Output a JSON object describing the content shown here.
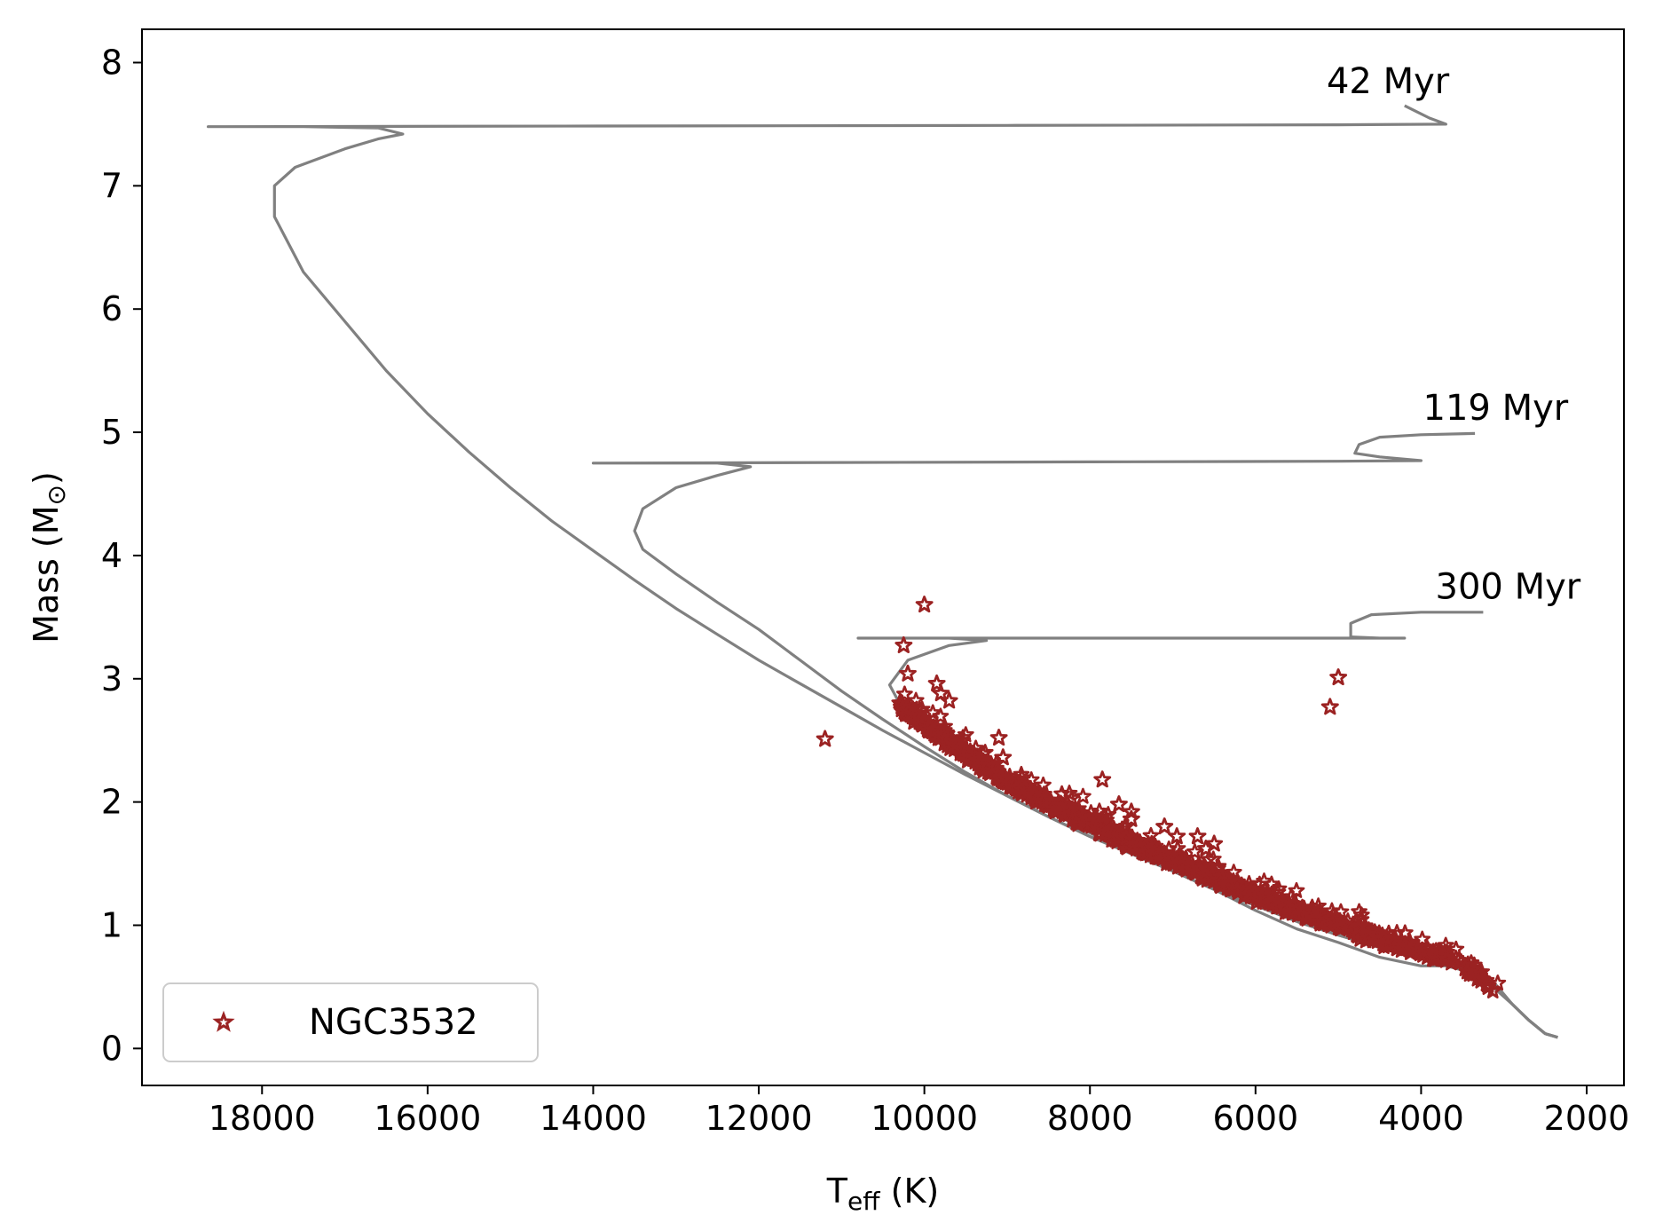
{
  "chart_data": {
    "type": "scatter",
    "title": "",
    "xlabel": "T",
    "xlabel_sub": "eff",
    "xlabel_unit": " (K)",
    "ylabel": "Mass (M",
    "ylabel_sub": "⊙",
    "ylabel_close": ")",
    "xlim": [
      19450,
      1550
    ],
    "ylim": [
      -0.3,
      8.27
    ],
    "xticks": [
      18000,
      16000,
      14000,
      12000,
      10000,
      8000,
      6000,
      4000,
      2000
    ],
    "yticks": [
      0,
      1,
      2,
      3,
      4,
      5,
      6,
      7,
      8
    ],
    "legend": {
      "position": "lower-left",
      "label": "NGC3532"
    },
    "colors": {
      "isochrone": "#808080",
      "stars": "#9b2222"
    },
    "isochrones": [
      {
        "name": "42 Myr",
        "label_at": [
          4400,
          7.75
        ],
        "points": [
          [
            2350,
            0.09
          ],
          [
            2500,
            0.12
          ],
          [
            2700,
            0.23
          ],
          [
            2900,
            0.36
          ],
          [
            3100,
            0.48
          ],
          [
            3300,
            0.58
          ],
          [
            3600,
            0.68
          ],
          [
            4000,
            0.74
          ],
          [
            4500,
            0.82
          ],
          [
            5000,
            0.92
          ],
          [
            5500,
            1.03
          ],
          [
            6000,
            1.16
          ],
          [
            6500,
            1.29
          ],
          [
            7000,
            1.44
          ],
          [
            7500,
            1.58
          ],
          [
            8000,
            1.72
          ],
          [
            8500,
            1.88
          ],
          [
            9000,
            2.05
          ],
          [
            9500,
            2.22
          ],
          [
            10000,
            2.4
          ],
          [
            10500,
            2.58
          ],
          [
            11000,
            2.77
          ],
          [
            11500,
            2.96
          ],
          [
            12000,
            3.15
          ],
          [
            12500,
            3.36
          ],
          [
            13000,
            3.57
          ],
          [
            13500,
            3.8
          ],
          [
            14000,
            4.04
          ],
          [
            14500,
            4.28
          ],
          [
            15000,
            4.55
          ],
          [
            15500,
            4.84
          ],
          [
            16000,
            5.15
          ],
          [
            16500,
            5.5
          ],
          [
            17000,
            5.9
          ],
          [
            17500,
            6.3
          ],
          [
            17850,
            6.75
          ],
          [
            17850,
            7.0
          ],
          [
            17600,
            7.15
          ],
          [
            17000,
            7.3
          ],
          [
            16600,
            7.38
          ],
          [
            16300,
            7.42
          ],
          [
            16600,
            7.47
          ],
          [
            17500,
            7.48
          ],
          [
            18650,
            7.48
          ],
          [
            14000,
            7.485
          ],
          [
            9000,
            7.49
          ],
          [
            5000,
            7.495
          ],
          [
            3700,
            7.5
          ],
          [
            3900,
            7.55
          ],
          [
            4200,
            7.65
          ]
        ]
      },
      {
        "name": "119 Myr",
        "label_at": [
          3100,
          5.1
        ],
        "points": [
          [
            2350,
            0.09
          ],
          [
            2500,
            0.12
          ],
          [
            2700,
            0.23
          ],
          [
            2900,
            0.36
          ],
          [
            3100,
            0.5
          ],
          [
            3300,
            0.62
          ],
          [
            3600,
            0.7
          ],
          [
            4000,
            0.73
          ],
          [
            4500,
            0.82
          ],
          [
            5000,
            0.92
          ],
          [
            5500,
            1.03
          ],
          [
            6000,
            1.16
          ],
          [
            6500,
            1.29
          ],
          [
            7000,
            1.44
          ],
          [
            7500,
            1.58
          ],
          [
            8000,
            1.72
          ],
          [
            8500,
            1.88
          ],
          [
            9000,
            2.05
          ],
          [
            9500,
            2.24
          ],
          [
            10000,
            2.45
          ],
          [
            10500,
            2.67
          ],
          [
            11000,
            2.9
          ],
          [
            11500,
            3.15
          ],
          [
            12000,
            3.4
          ],
          [
            12500,
            3.62
          ],
          [
            13000,
            3.85
          ],
          [
            13400,
            4.05
          ],
          [
            13500,
            4.2
          ],
          [
            13400,
            4.38
          ],
          [
            13000,
            4.55
          ],
          [
            12500,
            4.65
          ],
          [
            12100,
            4.72
          ],
          [
            12500,
            4.75
          ],
          [
            14000,
            4.75
          ],
          [
            8000,
            4.76
          ],
          [
            5000,
            4.765
          ],
          [
            4000,
            4.77
          ],
          [
            4500,
            4.8
          ],
          [
            4800,
            4.83
          ],
          [
            4750,
            4.9
          ],
          [
            4500,
            4.96
          ],
          [
            4000,
            4.98
          ],
          [
            3350,
            4.99
          ]
        ]
      },
      {
        "name": "300 Myr",
        "label_at": [
          2950,
          3.65
        ],
        "points": [
          [
            2350,
            0.09
          ],
          [
            2500,
            0.12
          ],
          [
            2700,
            0.23
          ],
          [
            2900,
            0.36
          ],
          [
            3100,
            0.52
          ],
          [
            3400,
            0.62
          ],
          [
            3700,
            0.67
          ],
          [
            4000,
            0.67
          ],
          [
            4500,
            0.74
          ],
          [
            5000,
            0.86
          ],
          [
            5500,
            0.97
          ],
          [
            6000,
            1.12
          ],
          [
            6500,
            1.29
          ],
          [
            7000,
            1.44
          ],
          [
            7500,
            1.58
          ],
          [
            8000,
            1.75
          ],
          [
            8500,
            1.93
          ],
          [
            9000,
            2.1
          ],
          [
            9300,
            2.3
          ],
          [
            9600,
            2.5
          ],
          [
            9900,
            2.65
          ],
          [
            10300,
            2.8
          ],
          [
            10420,
            2.95
          ],
          [
            10200,
            3.15
          ],
          [
            9700,
            3.27
          ],
          [
            9250,
            3.31
          ],
          [
            9700,
            3.33
          ],
          [
            10800,
            3.33
          ],
          [
            8000,
            3.33
          ],
          [
            6000,
            3.33
          ],
          [
            4200,
            3.33
          ],
          [
            4500,
            3.33
          ],
          [
            4850,
            3.34
          ],
          [
            4850,
            3.45
          ],
          [
            4600,
            3.52
          ],
          [
            4000,
            3.54
          ],
          [
            3250,
            3.54
          ]
        ]
      }
    ],
    "outliers": [
      [
        11200,
        2.51
      ],
      [
        10000,
        3.6
      ],
      [
        10250,
        3.27
      ],
      [
        10200,
        3.04
      ],
      [
        9850,
        2.96
      ],
      [
        9800,
        2.88
      ],
      [
        9700,
        2.82
      ],
      [
        9100,
        2.52
      ],
      [
        9050,
        2.36
      ],
      [
        7850,
        2.18
      ],
      [
        7650,
        1.98
      ],
      [
        7500,
        1.92
      ],
      [
        7500,
        1.86
      ],
      [
        7100,
        1.8
      ],
      [
        6950,
        1.72
      ],
      [
        6700,
        1.72
      ],
      [
        6600,
        1.62
      ],
      [
        6500,
        1.66
      ],
      [
        5000,
        3.01
      ],
      [
        5100,
        2.77
      ]
    ],
    "seed": 3532,
    "n_random": 1200
  }
}
